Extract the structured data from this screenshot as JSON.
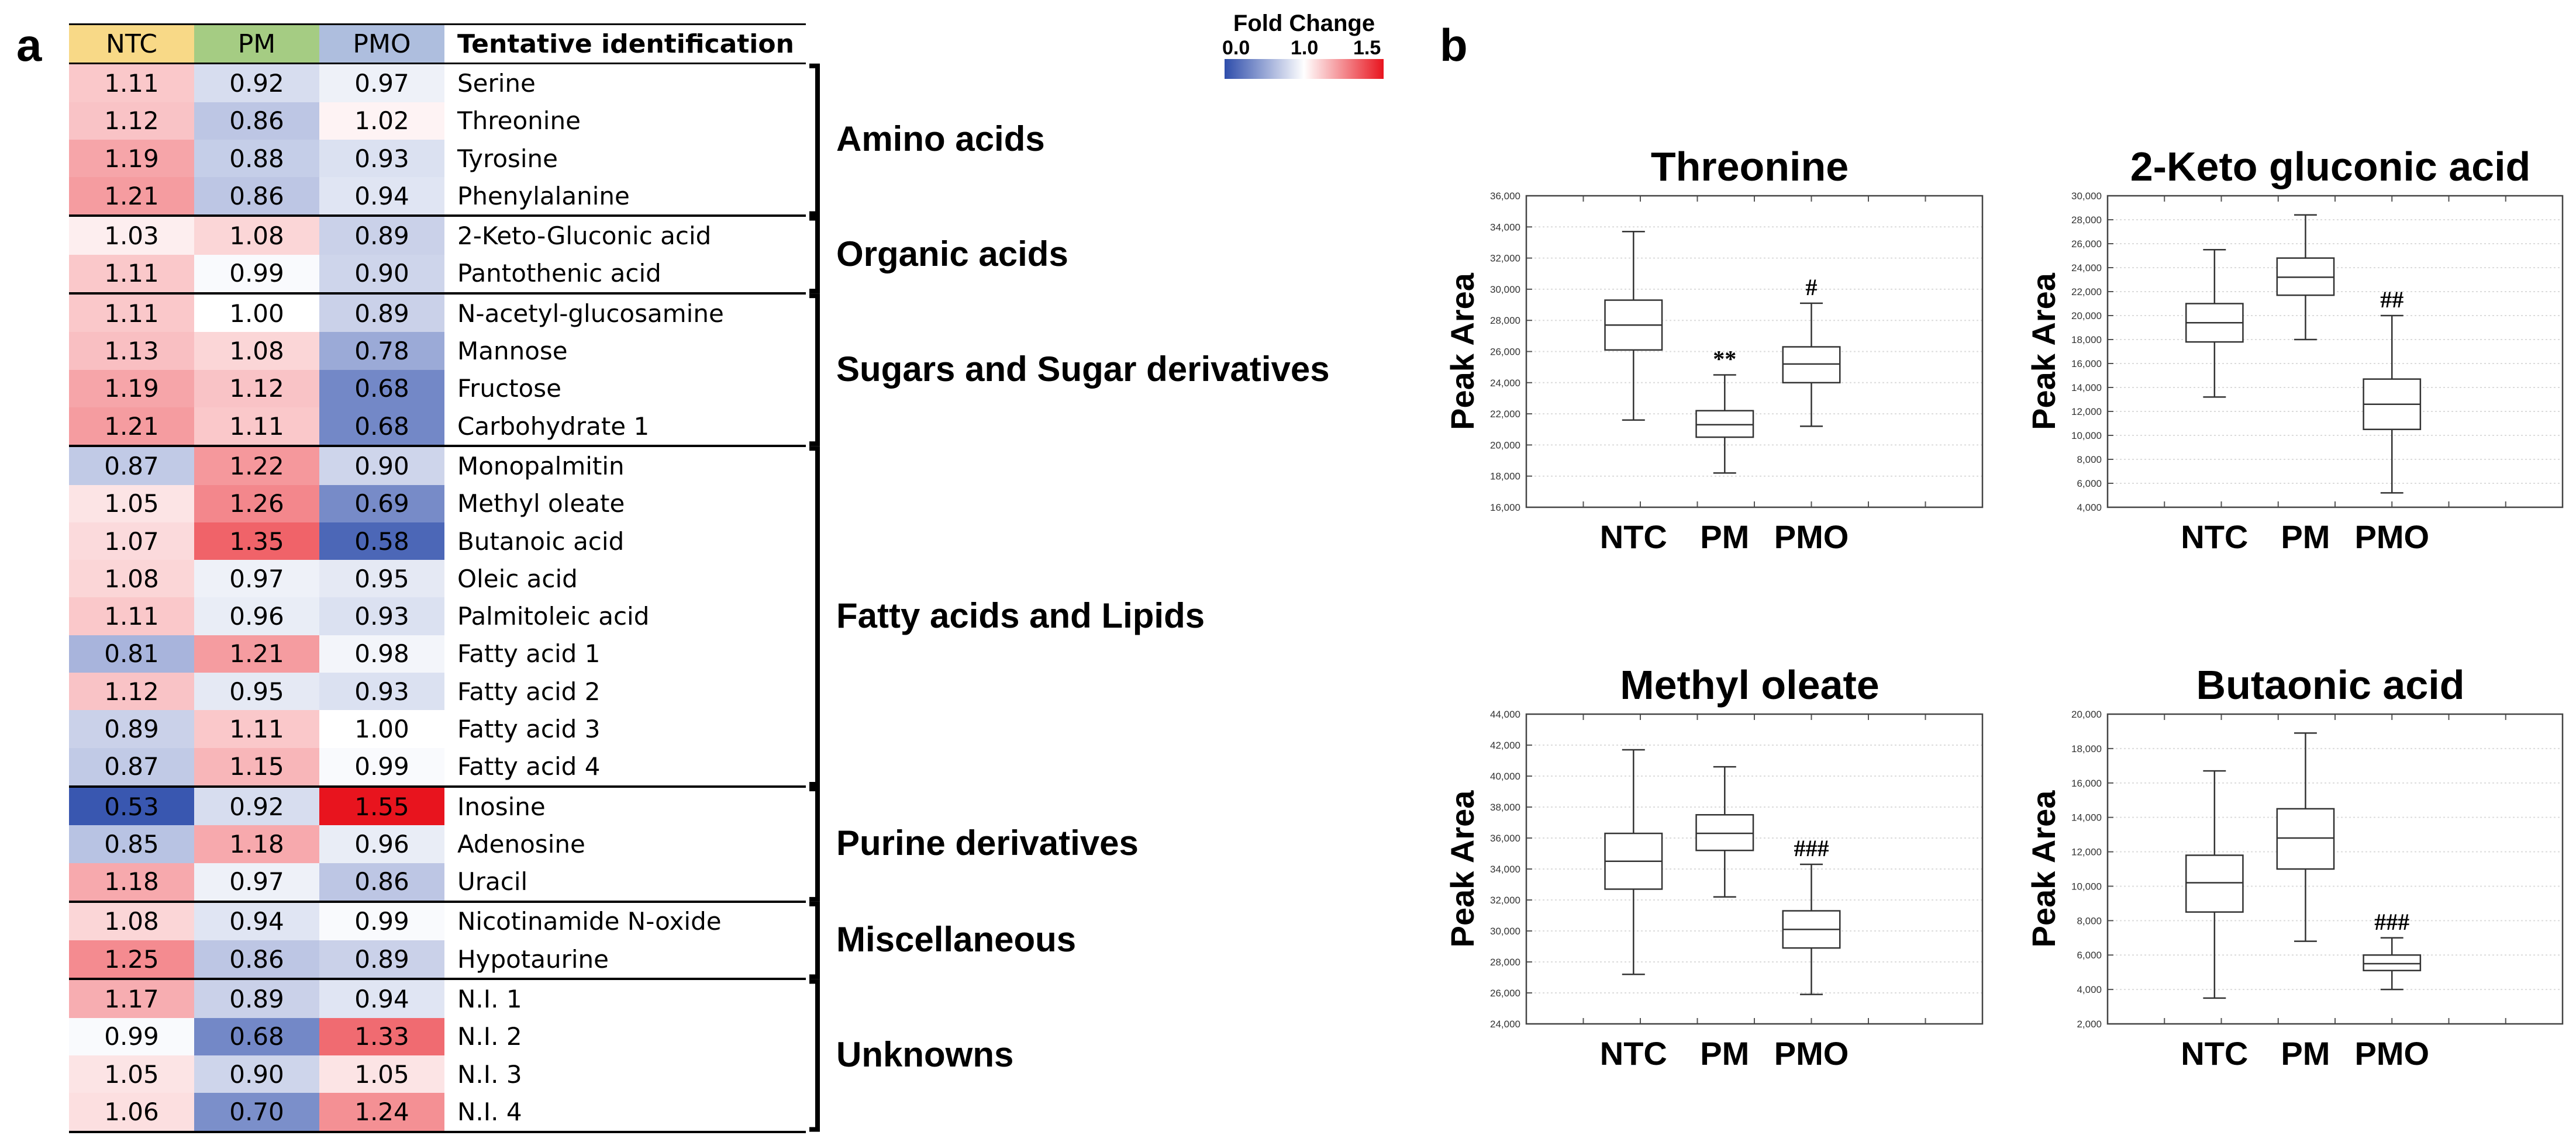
{
  "panels": {
    "a": "a",
    "b": "b"
  },
  "heatmap": {
    "headers": [
      "NTC",
      "PM",
      "PMO",
      "Tentative identification"
    ],
    "header_colors": [
      "#f8d987",
      "#a5cc83",
      "#aebede",
      "#ffffff"
    ],
    "colorbar": {
      "title": "Fold Change",
      "ticks": [
        "0.0",
        "1.0",
        "1.5"
      ],
      "low_color": "#2e4dab",
      "mid_color": "#ffffff",
      "high_color": "#e8141e"
    },
    "rows": [
      {
        "ntc": "1.11",
        "pm": "0.92",
        "pmo": "0.97",
        "name": "Serine"
      },
      {
        "ntc": "1.12",
        "pm": "0.86",
        "pmo": "1.02",
        "name": "Threonine"
      },
      {
        "ntc": "1.19",
        "pm": "0.88",
        "pmo": "0.93",
        "name": "Tyrosine"
      },
      {
        "ntc": "1.21",
        "pm": "0.86",
        "pmo": "0.94",
        "name": "Phenylalanine"
      },
      {
        "ntc": "1.03",
        "pm": "1.08",
        "pmo": "0.89",
        "name": "2-Keto-Gluconic acid"
      },
      {
        "ntc": "1.11",
        "pm": "0.99",
        "pmo": "0.90",
        "name": "Pantothenic acid"
      },
      {
        "ntc": "1.11",
        "pm": "1.00",
        "pmo": "0.89",
        "name": "N-acetyl-glucosamine"
      },
      {
        "ntc": "1.13",
        "pm": "1.08",
        "pmo": "0.78",
        "name": "Mannose"
      },
      {
        "ntc": "1.19",
        "pm": "1.12",
        "pmo": "0.68",
        "name": "Fructose"
      },
      {
        "ntc": "1.21",
        "pm": "1.11",
        "pmo": "0.68",
        "name": "Carbohydrate 1"
      },
      {
        "ntc": "0.87",
        "pm": "1.22",
        "pmo": "0.90",
        "name": "Monopalmitin"
      },
      {
        "ntc": "1.05",
        "pm": "1.26",
        "pmo": "0.69",
        "name": "Methyl oleate"
      },
      {
        "ntc": "1.07",
        "pm": "1.35",
        "pmo": "0.58",
        "name": "Butanoic acid"
      },
      {
        "ntc": "1.08",
        "pm": "0.97",
        "pmo": "0.95",
        "name": "Oleic acid"
      },
      {
        "ntc": "1.11",
        "pm": "0.96",
        "pmo": "0.93",
        "name": "Palmitoleic acid"
      },
      {
        "ntc": "0.81",
        "pm": "1.21",
        "pmo": "0.98",
        "name": "Fatty acid 1"
      },
      {
        "ntc": "1.12",
        "pm": "0.95",
        "pmo": "0.93",
        "name": "Fatty acid 2"
      },
      {
        "ntc": "0.89",
        "pm": "1.11",
        "pmo": "1.00",
        "name": "Fatty acid 3"
      },
      {
        "ntc": "0.87",
        "pm": "1.15",
        "pmo": "0.99",
        "name": "Fatty acid 4"
      },
      {
        "ntc": "0.53",
        "pm": "0.92",
        "pmo": "1.55",
        "name": "Inosine"
      },
      {
        "ntc": "0.85",
        "pm": "1.18",
        "pmo": "0.96",
        "name": "Adenosine"
      },
      {
        "ntc": "1.18",
        "pm": "0.97",
        "pmo": "0.86",
        "name": "Uracil"
      },
      {
        "ntc": "1.08",
        "pm": "0.94",
        "pmo": "0.99",
        "name": "Nicotinamide N-oxide"
      },
      {
        "ntc": "1.25",
        "pm": "0.86",
        "pmo": "0.89",
        "name": "Hypotaurine"
      },
      {
        "ntc": "1.17",
        "pm": "0.89",
        "pmo": "0.94",
        "name": "N.I. 1"
      },
      {
        "ntc": "0.99",
        "pm": "0.68",
        "pmo": "1.33",
        "name": "N.I. 2"
      },
      {
        "ntc": "1.05",
        "pm": "0.90",
        "pmo": "1.05",
        "name": "N.I. 3"
      },
      {
        "ntc": "1.06",
        "pm": "0.70",
        "pmo": "1.24",
        "name": "N.I. 4"
      }
    ],
    "groups": [
      {
        "label": "Amino acids",
        "rows": [
          0,
          3
        ]
      },
      {
        "label": "Organic acids",
        "rows": [
          4,
          5
        ]
      },
      {
        "label": "Sugars and Sugar derivatives",
        "rows": [
          6,
          9
        ]
      },
      {
        "label": "Fatty acids and Lipids",
        "rows": [
          10,
          18
        ]
      },
      {
        "label": "Purine derivatives",
        "rows": [
          19,
          21
        ]
      },
      {
        "label": "Miscellaneous",
        "rows": [
          22,
          23
        ]
      },
      {
        "label": "Unknowns",
        "rows": [
          24,
          27
        ]
      }
    ]
  },
  "chart_data": [
    {
      "type": "heatmap",
      "title": "Fold Change",
      "columns": [
        "NTC",
        "PM",
        "PMO"
      ],
      "row_labels": [
        "Serine",
        "Threonine",
        "Tyrosine",
        "Phenylalanine",
        "2-Keto-Gluconic acid",
        "Pantothenic acid",
        "N-acetyl-glucosamine",
        "Mannose",
        "Fructose",
        "Carbohydrate 1",
        "Monopalmitin",
        "Methyl oleate",
        "Butanoic acid",
        "Oleic acid",
        "Palmitoleic acid",
        "Fatty acid 1",
        "Fatty acid 2",
        "Fatty acid 3",
        "Fatty acid 4",
        "Inosine",
        "Adenosine",
        "Uracil",
        "Nicotinamide N-oxide",
        "Hypotaurine",
        "N.I. 1",
        "N.I. 2",
        "N.I. 3",
        "N.I. 4"
      ],
      "scale": [
        0.0,
        1.0,
        1.5
      ]
    },
    {
      "type": "box",
      "title": "Threonine",
      "ylabel": "Peak Area",
      "categories": [
        "NTC",
        "PM",
        "PMO"
      ],
      "ylim": [
        16000,
        36000
      ],
      "yticks": [
        16000,
        18000,
        20000,
        22000,
        24000,
        26000,
        28000,
        30000,
        32000,
        34000,
        36000
      ],
      "ytick_labels": [
        "16,000",
        "18,000",
        "20,000",
        "22,000",
        "24,000",
        "26,000",
        "28,000",
        "30,000",
        "32,000",
        "34,000",
        "36,000"
      ],
      "boxes": [
        {
          "min": 21600,
          "q1": 26100,
          "median": 27700,
          "q3": 29300,
          "max": 33700,
          "annotation": ""
        },
        {
          "min": 18200,
          "q1": 20500,
          "median": 21300,
          "q3": 22200,
          "max": 24500,
          "annotation": "**"
        },
        {
          "min": 21200,
          "q1": 24000,
          "median": 25200,
          "q3": 26300,
          "max": 29100,
          "annotation": "#"
        }
      ]
    },
    {
      "type": "box",
      "title": "2-Keto gluconic acid",
      "ylabel": "Peak Area",
      "categories": [
        "NTC",
        "PM",
        "PMO"
      ],
      "ylim": [
        4000,
        30000
      ],
      "yticks": [
        4000,
        6000,
        8000,
        10000,
        12000,
        14000,
        16000,
        18000,
        20000,
        22000,
        24000,
        26000,
        28000,
        30000
      ],
      "ytick_labels": [
        "4,000",
        "6,000",
        "8,000",
        "10,000",
        "12,000",
        "14,000",
        "16,000",
        "18,000",
        "20,000",
        "22,000",
        "24,000",
        "26,000",
        "28,000",
        "30,000"
      ],
      "boxes": [
        {
          "min": 13200,
          "q1": 17800,
          "median": 19400,
          "q3": 21000,
          "max": 25500,
          "annotation": ""
        },
        {
          "min": 18000,
          "q1": 21700,
          "median": 23200,
          "q3": 24800,
          "max": 28400,
          "annotation": ""
        },
        {
          "min": 5200,
          "q1": 10500,
          "median": 12600,
          "q3": 14700,
          "max": 20000,
          "annotation": "##"
        }
      ]
    },
    {
      "type": "box",
      "title": "Methyl oleate",
      "ylabel": "Peak Area",
      "categories": [
        "NTC",
        "PM",
        "PMO"
      ],
      "ylim": [
        24000,
        44000
      ],
      "yticks": [
        24000,
        26000,
        28000,
        30000,
        32000,
        34000,
        36000,
        38000,
        40000,
        42000,
        44000
      ],
      "ytick_labels": [
        "24,000",
        "26,000",
        "28,000",
        "30,000",
        "32,000",
        "34,000",
        "36,000",
        "38,000",
        "40,000",
        "42,000",
        "44,000"
      ],
      "boxes": [
        {
          "min": 27200,
          "q1": 32700,
          "median": 34500,
          "q3": 36300,
          "max": 41700,
          "annotation": ""
        },
        {
          "min": 32200,
          "q1": 35200,
          "median": 36300,
          "q3": 37500,
          "max": 40600,
          "annotation": ""
        },
        {
          "min": 25900,
          "q1": 28900,
          "median": 30100,
          "q3": 31300,
          "max": 34300,
          "annotation": "###"
        }
      ]
    },
    {
      "type": "box",
      "title": "Butaonic acid",
      "ylabel": "Peak Area",
      "categories": [
        "NTC",
        "PM",
        "PMO"
      ],
      "ylim": [
        2000,
        20000
      ],
      "yticks": [
        2000,
        4000,
        6000,
        8000,
        10000,
        12000,
        14000,
        16000,
        18000,
        20000
      ],
      "ytick_labels": [
        "2,000",
        "4,000",
        "6,000",
        "8,000",
        "10,000",
        "12,000",
        "14,000",
        "16,000",
        "18,000",
        "20,000"
      ],
      "boxes": [
        {
          "min": 3500,
          "q1": 8500,
          "median": 10200,
          "q3": 11800,
          "max": 16700,
          "annotation": ""
        },
        {
          "min": 6800,
          "q1": 11000,
          "median": 12800,
          "q3": 14500,
          "max": 18900,
          "annotation": ""
        },
        {
          "min": 4000,
          "q1": 5100,
          "median": 5500,
          "q3": 6000,
          "max": 7000,
          "annotation": "###"
        }
      ]
    }
  ]
}
